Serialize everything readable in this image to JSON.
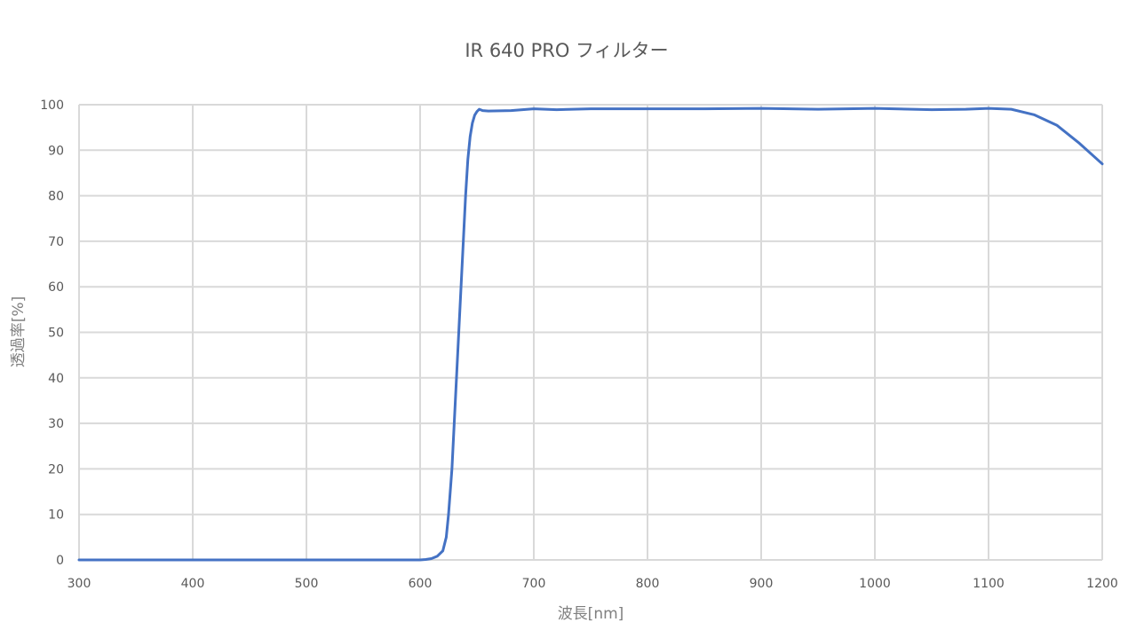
{
  "chart_data": {
    "type": "line",
    "title": "IR 640 PRO フィルター",
    "xlabel": "波長[nm]",
    "ylabel": "透過率[%]",
    "xlim": [
      300,
      1200
    ],
    "ylim": [
      0,
      100
    ],
    "x_ticks": [
      "300",
      "400",
      "500",
      "600",
      "700",
      "800",
      "900",
      "1000",
      "1100",
      "1200"
    ],
    "y_ticks": [
      "0",
      "10",
      "20",
      "30",
      "40",
      "50",
      "60",
      "70",
      "80",
      "90",
      "100"
    ],
    "grid": true,
    "legend": "none",
    "series": [
      {
        "color": "#4472c4",
        "x": [
          300,
          400,
          500,
          590,
          600,
          605,
          610,
          615,
          620,
          623,
          625,
          628,
          630,
          633,
          635,
          638,
          640,
          642,
          644,
          646,
          648,
          650,
          652,
          655,
          660,
          680,
          700,
          720,
          750,
          800,
          850,
          900,
          950,
          1000,
          1050,
          1080,
          1100,
          1120,
          1140,
          1160,
          1180,
          1200
        ],
        "y": [
          0,
          0,
          0,
          0,
          0,
          0.1,
          0.3,
          0.8,
          2,
          5,
          10,
          20,
          30,
          45,
          55,
          70,
          80,
          88,
          93,
          96,
          97.7,
          98.5,
          99,
          98.7,
          98.6,
          98.7,
          99.1,
          98.9,
          99.1,
          99.1,
          99.1,
          99.2,
          99.0,
          99.2,
          98.9,
          99.0,
          99.2,
          99.0,
          97.8,
          95.5,
          91.5,
          87
        ]
      }
    ]
  }
}
